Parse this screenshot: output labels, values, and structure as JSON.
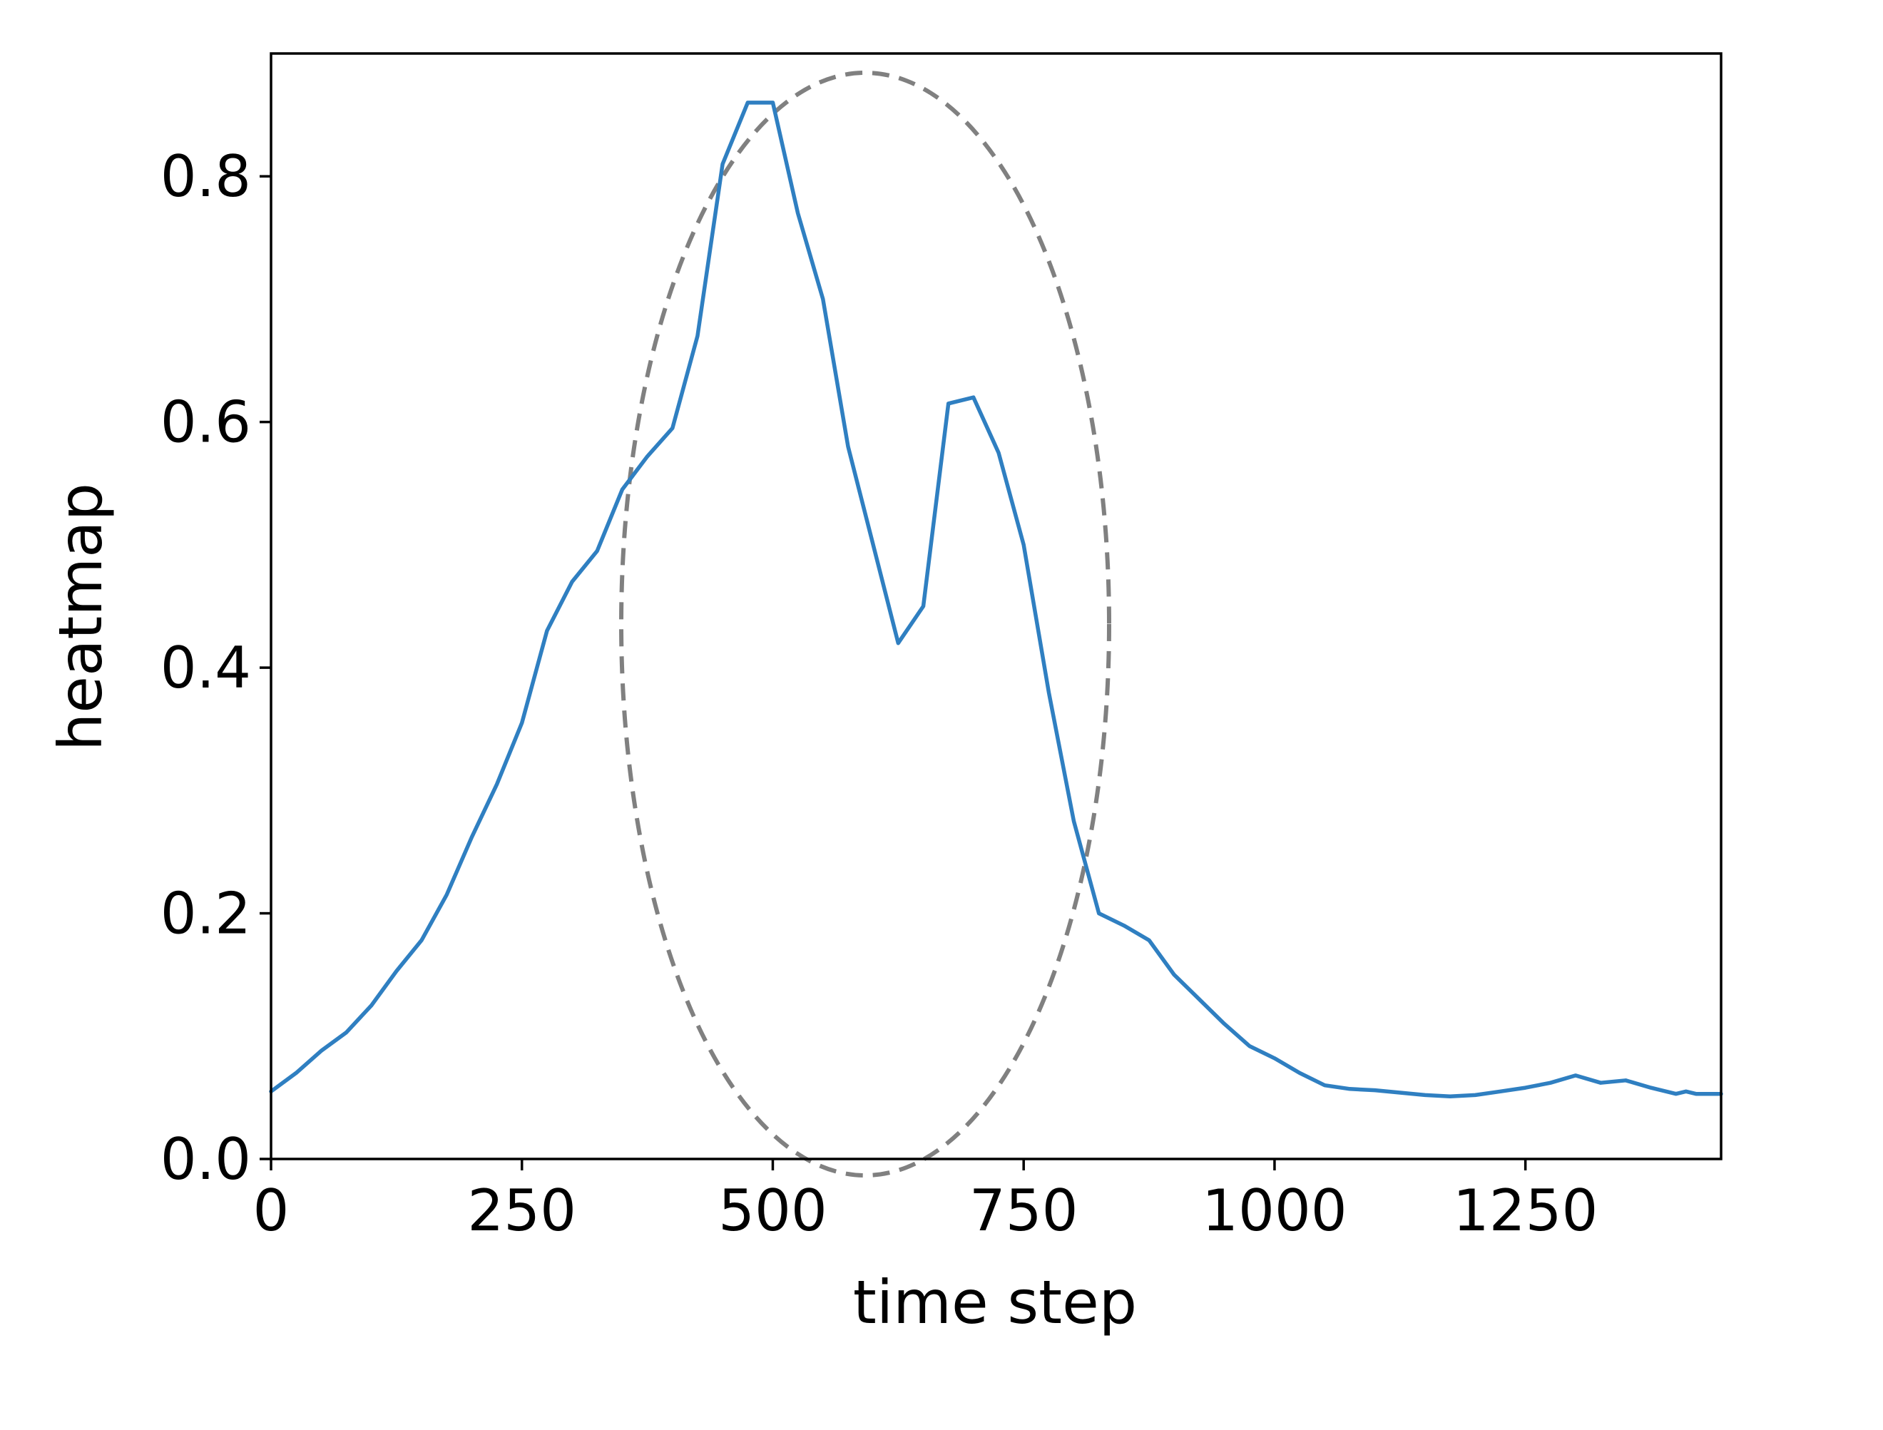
{
  "chart_data": {
    "type": "line",
    "xlabel": "time step",
    "ylabel": "heatmap",
    "xlim": [
      0,
      1445
    ],
    "ylim": [
      0,
      0.9
    ],
    "xticks": [
      0,
      250,
      500,
      750,
      1000,
      1250
    ],
    "xtick_labels": [
      "0",
      "250",
      "500",
      "750",
      "1000",
      "1250"
    ],
    "yticks": [
      0.0,
      0.2,
      0.4,
      0.6,
      0.8
    ],
    "ytick_labels": [
      "0.0",
      "0.2",
      "0.4",
      "0.6",
      "0.8"
    ],
    "grid": false,
    "series": [
      {
        "color": "#2f7fc1",
        "x": [
          0,
          25,
          50,
          75,
          100,
          125,
          150,
          175,
          200,
          225,
          250,
          275,
          300,
          325,
          350,
          375,
          400,
          425,
          450,
          475,
          500,
          525,
          550,
          575,
          600,
          625,
          650,
          675,
          700,
          725,
          750,
          775,
          800,
          825,
          850,
          875,
          900,
          925,
          950,
          975,
          1000,
          1025,
          1050,
          1075,
          1100,
          1125,
          1150,
          1175,
          1200,
          1225,
          1250,
          1275,
          1300,
          1325,
          1350,
          1375,
          1400,
          1410,
          1420,
          1430,
          1445
        ],
        "y": [
          0.055,
          0.07,
          0.088,
          0.103,
          0.125,
          0.153,
          0.178,
          0.215,
          0.262,
          0.305,
          0.355,
          0.43,
          0.47,
          0.495,
          0.545,
          0.572,
          0.595,
          0.67,
          0.81,
          0.86,
          0.86,
          0.77,
          0.7,
          0.58,
          0.5,
          0.42,
          0.45,
          0.615,
          0.62,
          0.575,
          0.5,
          0.38,
          0.275,
          0.2,
          0.19,
          0.178,
          0.15,
          0.13,
          0.11,
          0.092,
          0.082,
          0.07,
          0.06,
          0.057,
          0.056,
          0.054,
          0.052,
          0.051,
          0.052,
          0.055,
          0.058,
          0.062,
          0.068,
          0.062,
          0.064,
          0.058,
          0.053,
          0.055,
          0.053,
          0.053,
          0.053
        ]
      }
    ]
  }
}
